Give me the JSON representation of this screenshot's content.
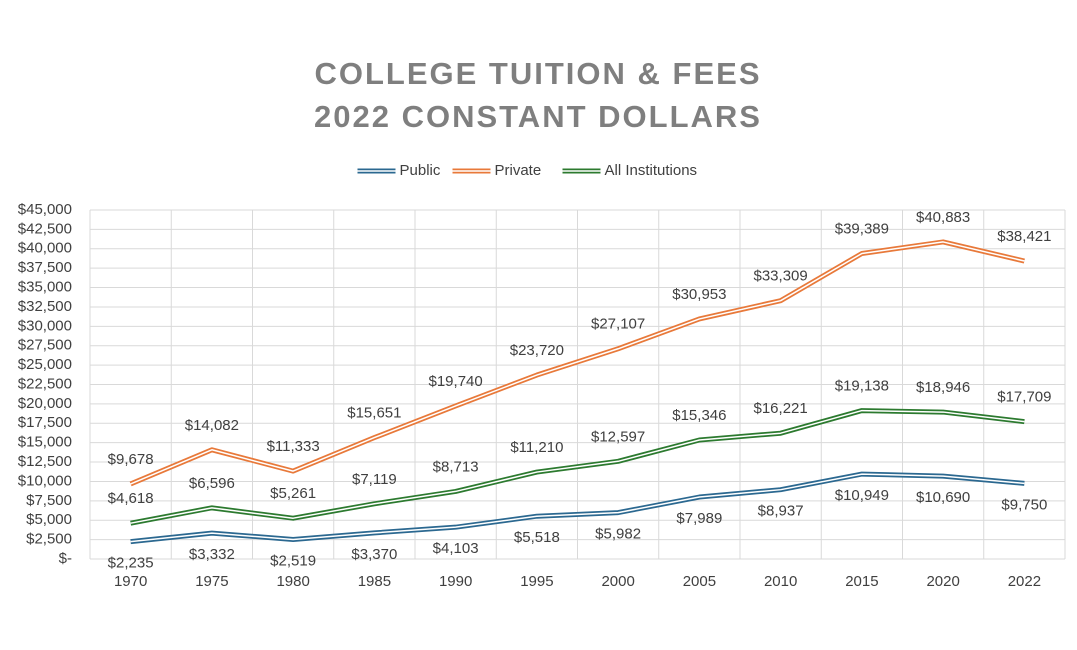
{
  "chart_data": {
    "type": "line",
    "title": "COLLEGE TUITION & FEES",
    "subtitle": "2022 CONSTANT DOLLARS",
    "categories": [
      "1970",
      "1975",
      "1980",
      "1985",
      "1990",
      "1995",
      "2000",
      "2005",
      "2010",
      "2015",
      "2020",
      "2022"
    ],
    "series": [
      {
        "name": "Public",
        "color": "#2b6890",
        "values": [
          2235,
          3332,
          2519,
          3370,
          4103,
          5518,
          5982,
          7989,
          8937,
          10949,
          10690,
          9750
        ],
        "value_labels": [
          "$2,235",
          "$3,332",
          "$2,519",
          "$3,370",
          "$4,103",
          "$5,518",
          "$5,982",
          "$7,989",
          "$8,937",
          "$10,949",
          "$10,690",
          "$9,750"
        ]
      },
      {
        "name": "Private",
        "color": "#e8793a",
        "values": [
          9678,
          14082,
          11333,
          15651,
          19740,
          23720,
          27107,
          30953,
          33309,
          39389,
          40883,
          38421
        ],
        "value_labels": [
          "$9,678",
          "$14,082",
          "$11,333",
          "$15,651",
          "$19,740",
          "$23,720",
          "$27,107",
          "$30,953",
          "$33,309",
          "$39,389",
          "$40,883",
          "$38,421"
        ]
      },
      {
        "name": "All Institutions",
        "color": "#2c7a2f",
        "values": [
          4618,
          6596,
          5261,
          7119,
          8713,
          11210,
          12597,
          15346,
          16221,
          19138,
          18946,
          17709
        ],
        "value_labels": [
          "$4,618",
          "$6,596",
          "$5,261",
          "$7,119",
          "$8,713",
          "$11,210",
          "$12,597",
          "$15,346",
          "$16,221",
          "$19,138",
          "$18,946",
          "$17,709"
        ]
      }
    ],
    "ylim": [
      0,
      45000
    ],
    "yticks": [
      {
        "value": 0,
        "label": "$-"
      },
      {
        "value": 2500,
        "label": "$2,500"
      },
      {
        "value": 5000,
        "label": "$5,000"
      },
      {
        "value": 7500,
        "label": "$7,500"
      },
      {
        "value": 10000,
        "label": "$10,000"
      },
      {
        "value": 12500,
        "label": "$12,500"
      },
      {
        "value": 15000,
        "label": "$15,000"
      },
      {
        "value": 17500,
        "label": "$17,500"
      },
      {
        "value": 20000,
        "label": "$20,000"
      },
      {
        "value": 22500,
        "label": "$22,500"
      },
      {
        "value": 25000,
        "label": "$25,000"
      },
      {
        "value": 27500,
        "label": "$27,500"
      },
      {
        "value": 30000,
        "label": "$30,000"
      },
      {
        "value": 32500,
        "label": "$32,500"
      },
      {
        "value": 35000,
        "label": "$35,000"
      },
      {
        "value": 37500,
        "label": "$37,500"
      },
      {
        "value": 40000,
        "label": "$40,000"
      },
      {
        "value": 42500,
        "label": "$42,500"
      },
      {
        "value": 45000,
        "label": "$45,000"
      }
    ],
    "grid": true,
    "legend": "top"
  }
}
